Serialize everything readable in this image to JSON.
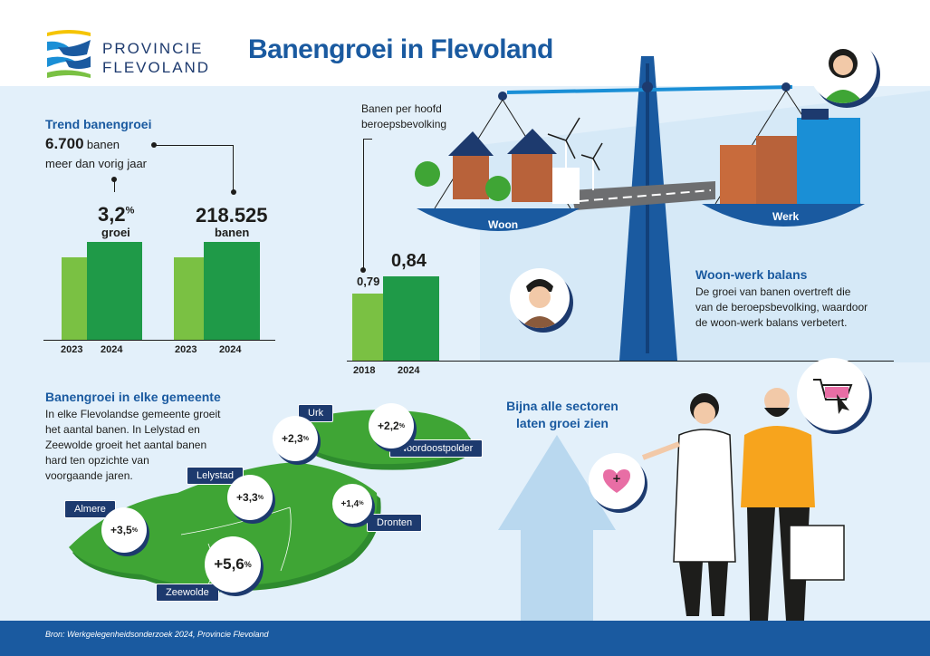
{
  "header": {
    "logo_line1": "Provincie",
    "logo_line2": "Flevoland",
    "title": "Banengroei in Flevoland"
  },
  "trend": {
    "title": "Trend banengroei",
    "jobs_more_number": "6.700",
    "jobs_more_word": "banen",
    "jobs_more_text": "meer dan vorig jaar",
    "growth_value": "3,2",
    "growth_unit": "%",
    "growth_label": "groei",
    "jobs_value": "218.525",
    "jobs_label": "banen",
    "years": [
      "2023",
      "2024",
      "2023",
      "2024"
    ]
  },
  "ratio": {
    "label_line1": "Banen per hoofd",
    "label_line2": "beroepsbevolking",
    "chart_data": {
      "type": "bar",
      "categories": [
        "2018",
        "2024"
      ],
      "values": [
        0.79,
        0.84
      ],
      "labels": [
        "0,79",
        "0,84"
      ]
    }
  },
  "scale": {
    "left_label": "Woon",
    "right_label": "Werk"
  },
  "balance": {
    "title": "Woon-werk balans",
    "text_line1": "De groei van banen overtreft die",
    "text_line2": "van de beroepsbevolking, waardoor",
    "text_line3": "de woon-werk balans verbetert."
  },
  "municipalities": {
    "title": "Banengroei in elke gemeente",
    "text_line1": "In elke Flevolandse gemeente groeit",
    "text_line2": "het aantal banen. In Lelystad en",
    "text_line3": "Zeewolde groeit het aantal banen",
    "text_line4": "hard ten opzichte van",
    "text_line5": "voorgaande jaren.",
    "items": [
      {
        "name": "Urk",
        "growth": "+2,3",
        "unit": "%"
      },
      {
        "name": "Noordoostpolder",
        "growth": "+2,2",
        "unit": "%"
      },
      {
        "name": "Lelystad",
        "growth": "+3,3",
        "unit": "%"
      },
      {
        "name": "Dronten",
        "growth": "+1,4",
        "unit": "%"
      },
      {
        "name": "Almere",
        "growth": "+3,5",
        "unit": "%"
      },
      {
        "name": "Zeewolde",
        "growth": "+5,6",
        "unit": "%"
      }
    ]
  },
  "sectors": {
    "title_line1": "Bijna alle sectoren",
    "title_line2": "laten groei zien"
  },
  "footer": {
    "source": "Bron: Werkgelegenheidsonderzoek 2024, Provincie Flevoland"
  },
  "colors": {
    "brand_blue": "#1a5aa0",
    "navy": "#1d3a6e",
    "green_light": "#7ac143",
    "green_dark": "#1f9a48",
    "map_green": "#3fa535"
  }
}
